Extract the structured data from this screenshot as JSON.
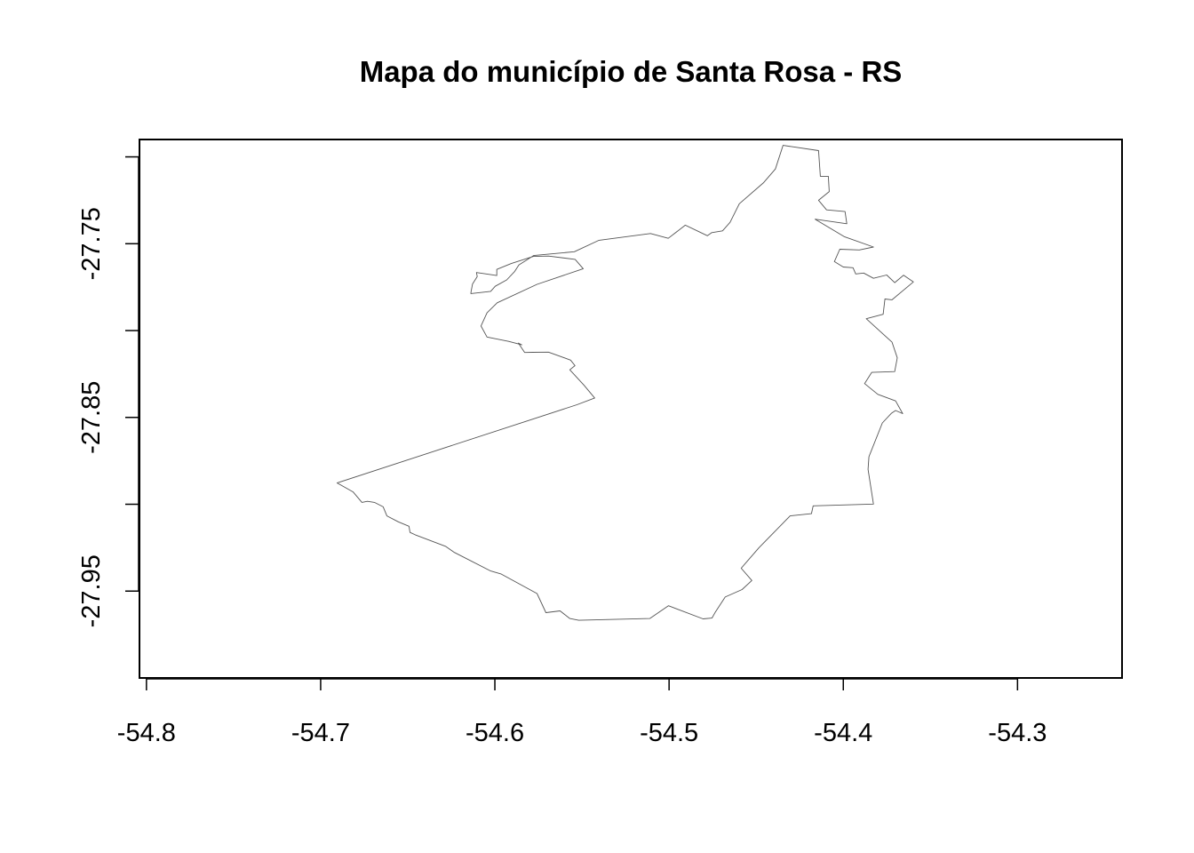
{
  "chart_data": {
    "type": "map",
    "title": "Mapa do município de Santa Rosa - RS",
    "xlabel": "",
    "ylabel": "",
    "xlim": [
      -54.804,
      -54.24
    ],
    "ylim": [
      -28.0,
      -27.69
    ],
    "x_ticks": [
      -54.8,
      -54.7,
      -54.6,
      -54.5,
      -54.4,
      -54.3
    ],
    "x_tick_labels": [
      "-54.8",
      "-54.7",
      "-54.6",
      "-54.5",
      "-54.4",
      "-54.3"
    ],
    "y_ticks": [
      -27.95,
      -27.9,
      -27.85,
      -27.8,
      -27.75,
      -27.7
    ],
    "y_tick_labels": [
      "-27.95",
      "",
      "-27.85",
      "",
      "-27.75",
      ""
    ],
    "grid": false,
    "legend": "none",
    "outline_color": "#555555",
    "boundary": {
      "name": "Santa Rosa",
      "lon": [
        -54.4346,
        -54.4142,
        -54.4132,
        -54.4086,
        -54.4081,
        -54.4142,
        -54.4096,
        -54.399,
        -54.398,
        -54.4162,
        -54.3995,
        -54.3827,
        -54.3908,
        -54.402,
        -54.4051,
        -54.4,
        -54.3944,
        -54.3929,
        -54.3883,
        -54.3827,
        -54.3751,
        -54.3705,
        -54.3654,
        -54.3598,
        -54.372,
        -54.3761,
        -54.3771,
        -54.3868,
        -54.372,
        -54.369,
        -54.3705,
        -54.3837,
        -54.3878,
        -54.3802,
        -54.37,
        -54.3659,
        -54.37,
        -54.3725,
        -54.3776,
        -54.3853,
        -54.3858,
        -54.3827,
        -54.4173,
        -54.4183,
        -54.4305,
        -54.4484,
        -54.4586,
        -54.4525,
        -54.4581,
        -54.4678,
        -54.4734,
        -54.4754,
        -54.4805,
        -54.5004,
        -54.5111,
        -54.5519,
        -54.557,
        -54.5626,
        -54.5707,
        -54.5758,
        -54.5963,
        -54.6024,
        -54.6233,
        -54.6284,
        -54.6457,
        -54.6487,
        -54.6493,
        -54.6554,
        -54.662,
        -54.6641,
        -54.6691,
        -54.6732,
        -54.6763,
        -54.6814,
        -54.6906,
        -54.5529,
        -54.5427,
        -54.5488,
        -54.557,
        -54.554,
        -54.5565,
        -54.5692,
        -54.5784,
        -54.5829,
        -54.5865,
        -54.5845,
        -54.5921,
        -54.6045,
        -54.608,
        -54.6045,
        -54.5987,
        -54.5758,
        -54.5493,
        -54.5539,
        -54.5692,
        -54.5779,
        -54.5906,
        -54.5989,
        -54.5989,
        -54.6106,
        -54.6101,
        -54.6128,
        -54.6137,
        -54.6138,
        -54.6024,
        -54.5998,
        -54.5932,
        -54.5886,
        -54.5862,
        -54.5822,
        -54.5778,
        -54.5544,
        -54.5402,
        -54.5107,
        -54.5005,
        -54.4907,
        -54.478,
        -54.4755,
        -54.4693,
        -54.465,
        -54.4597,
        -54.4459,
        -54.439,
        -54.4346
      ],
      "lat": [
        -27.6934,
        -27.6964,
        -27.7112,
        -27.7112,
        -27.72,
        -27.725,
        -27.7305,
        -27.7315,
        -27.7385,
        -27.7359,
        -27.7459,
        -27.7519,
        -27.7536,
        -27.7532,
        -27.7603,
        -27.7634,
        -27.7638,
        -27.7674,
        -27.7669,
        -27.7699,
        -27.768,
        -27.7724,
        -27.7681,
        -27.772,
        -27.7823,
        -27.7818,
        -27.7906,
        -27.7932,
        -27.8067,
        -27.8157,
        -27.8236,
        -27.8241,
        -27.8305,
        -27.8367,
        -27.8405,
        -27.8478,
        -27.846,
        -27.8477,
        -27.8532,
        -27.8726,
        -27.8799,
        -27.8999,
        -27.9009,
        -27.9054,
        -27.9067,
        -27.925,
        -27.9368,
        -27.9439,
        -27.9491,
        -27.9534,
        -27.962,
        -27.9655,
        -27.966,
        -27.9584,
        -27.9658,
        -27.9668,
        -27.9658,
        -27.9614,
        -27.9624,
        -27.9514,
        -27.9402,
        -27.9384,
        -27.9277,
        -27.9242,
        -27.9176,
        -27.9162,
        -27.9127,
        -27.9101,
        -27.9067,
        -27.9015,
        -27.8989,
        -27.8983,
        -27.8989,
        -27.8929,
        -27.8877,
        -27.8427,
        -27.8388,
        -27.8315,
        -27.8226,
        -27.8202,
        -27.817,
        -27.8124,
        -27.8125,
        -27.8126,
        -27.8072,
        -27.8082,
        -27.8062,
        -27.8037,
        -27.7974,
        -27.7898,
        -27.784,
        -27.7734,
        -27.7644,
        -27.759,
        -27.7571,
        -27.7573,
        -27.7614,
        -27.7648,
        -27.7683,
        -27.7666,
        -27.7689,
        -27.7732,
        -27.7778,
        -27.7787,
        -27.7774,
        -27.7745,
        -27.7708,
        -27.7659,
        -27.7622,
        -27.7597,
        -27.7568,
        -27.7546,
        -27.748,
        -27.7441,
        -27.7469,
        -27.7393,
        -27.7454,
        -27.7436,
        -27.7426,
        -27.7377,
        -27.727,
        -27.715,
        -27.707,
        -27.6934
      ]
    }
  }
}
